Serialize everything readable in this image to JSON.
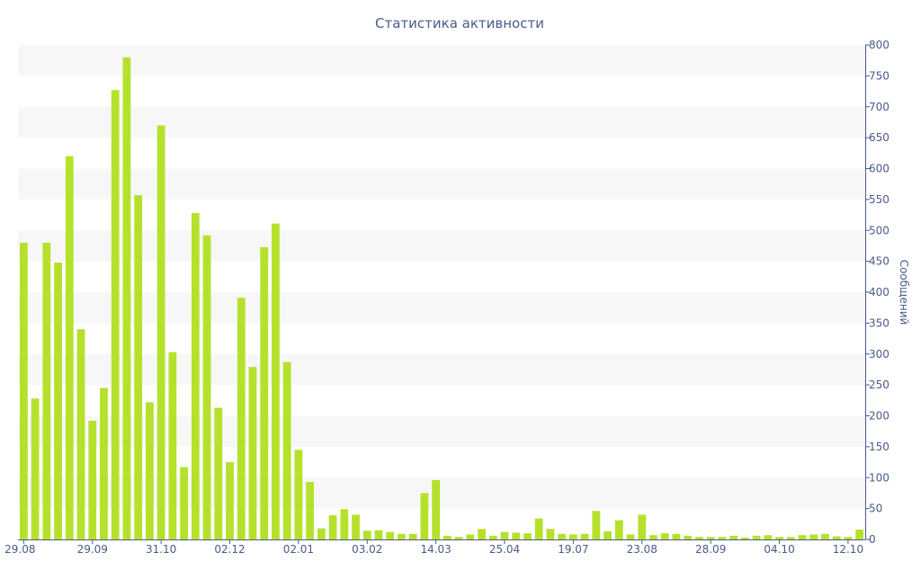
{
  "chart_data": {
    "type": "bar",
    "title": "Статистика активности",
    "ylabel": "Сообщений",
    "xlabel": "",
    "ylim": [
      0,
      800
    ],
    "y_axis_side": "right",
    "y_ticks": [
      0,
      50,
      100,
      150,
      200,
      250,
      300,
      350,
      400,
      450,
      500,
      550,
      600,
      650,
      700,
      750,
      800
    ],
    "grid": "horizontal alternating bands",
    "bar_color": "#b5e12c",
    "band_color": "#f7f7f7",
    "text_color": "#4a5a8a",
    "x_tick_labels": [
      "29.08",
      "29.09",
      "31.10",
      "02.12",
      "02.01",
      "03.02",
      "14.03",
      "25.04",
      "19.07",
      "23.08",
      "28.09",
      "04.10",
      "12.10"
    ],
    "x_tick_bar_index": [
      0,
      6,
      12,
      18,
      24,
      30,
      36,
      42,
      48,
      54,
      60,
      66,
      72
    ],
    "values": [
      480,
      228,
      480,
      448,
      620,
      340,
      192,
      245,
      727,
      780,
      557,
      222,
      670,
      303,
      117,
      528,
      492,
      213,
      125,
      391,
      279,
      473,
      511,
      287,
      145,
      93,
      18,
      39,
      49,
      40,
      14,
      15,
      12,
      9,
      9,
      75,
      96,
      6,
      4,
      8,
      17,
      6,
      12,
      11,
      10,
      34,
      17,
      9,
      8,
      9,
      46,
      13,
      31,
      8,
      40,
      7,
      10,
      9,
      6,
      4,
      4,
      4,
      6,
      3,
      6,
      7,
      4,
      4,
      7,
      8,
      9,
      5,
      4,
      16
    ]
  }
}
